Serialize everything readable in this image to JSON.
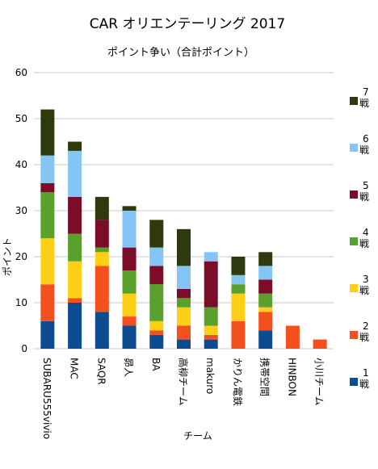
{
  "chart_data": {
    "type": "bar",
    "stacked": true,
    "title": "CAR オリエンテーリング 2017",
    "subtitle": "ポイント争い（合計ポイント）",
    "xlabel": "チーム",
    "ylabel": "ポイント",
    "ylim": [
      0,
      60
    ],
    "yticks": [
      0,
      10,
      20,
      30,
      40,
      50,
      60
    ],
    "grid": true,
    "legend_position": "right",
    "categories": [
      "SUBARU555vivio",
      "MAC",
      "SAQR",
      "昴人",
      "BA",
      "高柳チーム",
      "makuro",
      "かりん電鉄",
      "携帯空間",
      "HINBON",
      "小川チーム"
    ],
    "series": [
      {
        "name_num": "1",
        "name_unit": "戦",
        "color": "#0E4C92",
        "values": [
          6,
          10,
          8,
          5,
          3,
          2,
          2,
          0,
          4,
          0,
          0
        ]
      },
      {
        "name_num": "2",
        "name_unit": "戦",
        "color": "#F4501E",
        "values": [
          8,
          1,
          10,
          2,
          1,
          3,
          1,
          6,
          4,
          5,
          2
        ]
      },
      {
        "name_num": "3",
        "name_unit": "戦",
        "color": "#FDD017",
        "values": [
          10,
          8,
          3,
          5,
          2,
          4,
          2,
          6,
          1,
          0,
          0
        ]
      },
      {
        "name_num": "4",
        "name_unit": "戦",
        "color": "#5AA02C",
        "values": [
          10,
          6,
          1,
          5,
          8,
          2,
          4,
          2,
          3,
          0,
          0
        ]
      },
      {
        "name_num": "5",
        "name_unit": "戦",
        "color": "#7B0C2A",
        "values": [
          2,
          8,
          6,
          5,
          4,
          2,
          10,
          0,
          3,
          0,
          0
        ]
      },
      {
        "name_num": "6",
        "name_unit": "戦",
        "color": "#85C5F5",
        "values": [
          6,
          10,
          0,
          8,
          4,
          5,
          2,
          2,
          3,
          0,
          0
        ]
      },
      {
        "name_num": "7",
        "name_unit": "戦",
        "color": "#2E3A0E",
        "values": [
          10,
          2,
          5,
          1,
          6,
          8,
          0,
          4,
          3,
          0,
          0
        ]
      }
    ]
  }
}
